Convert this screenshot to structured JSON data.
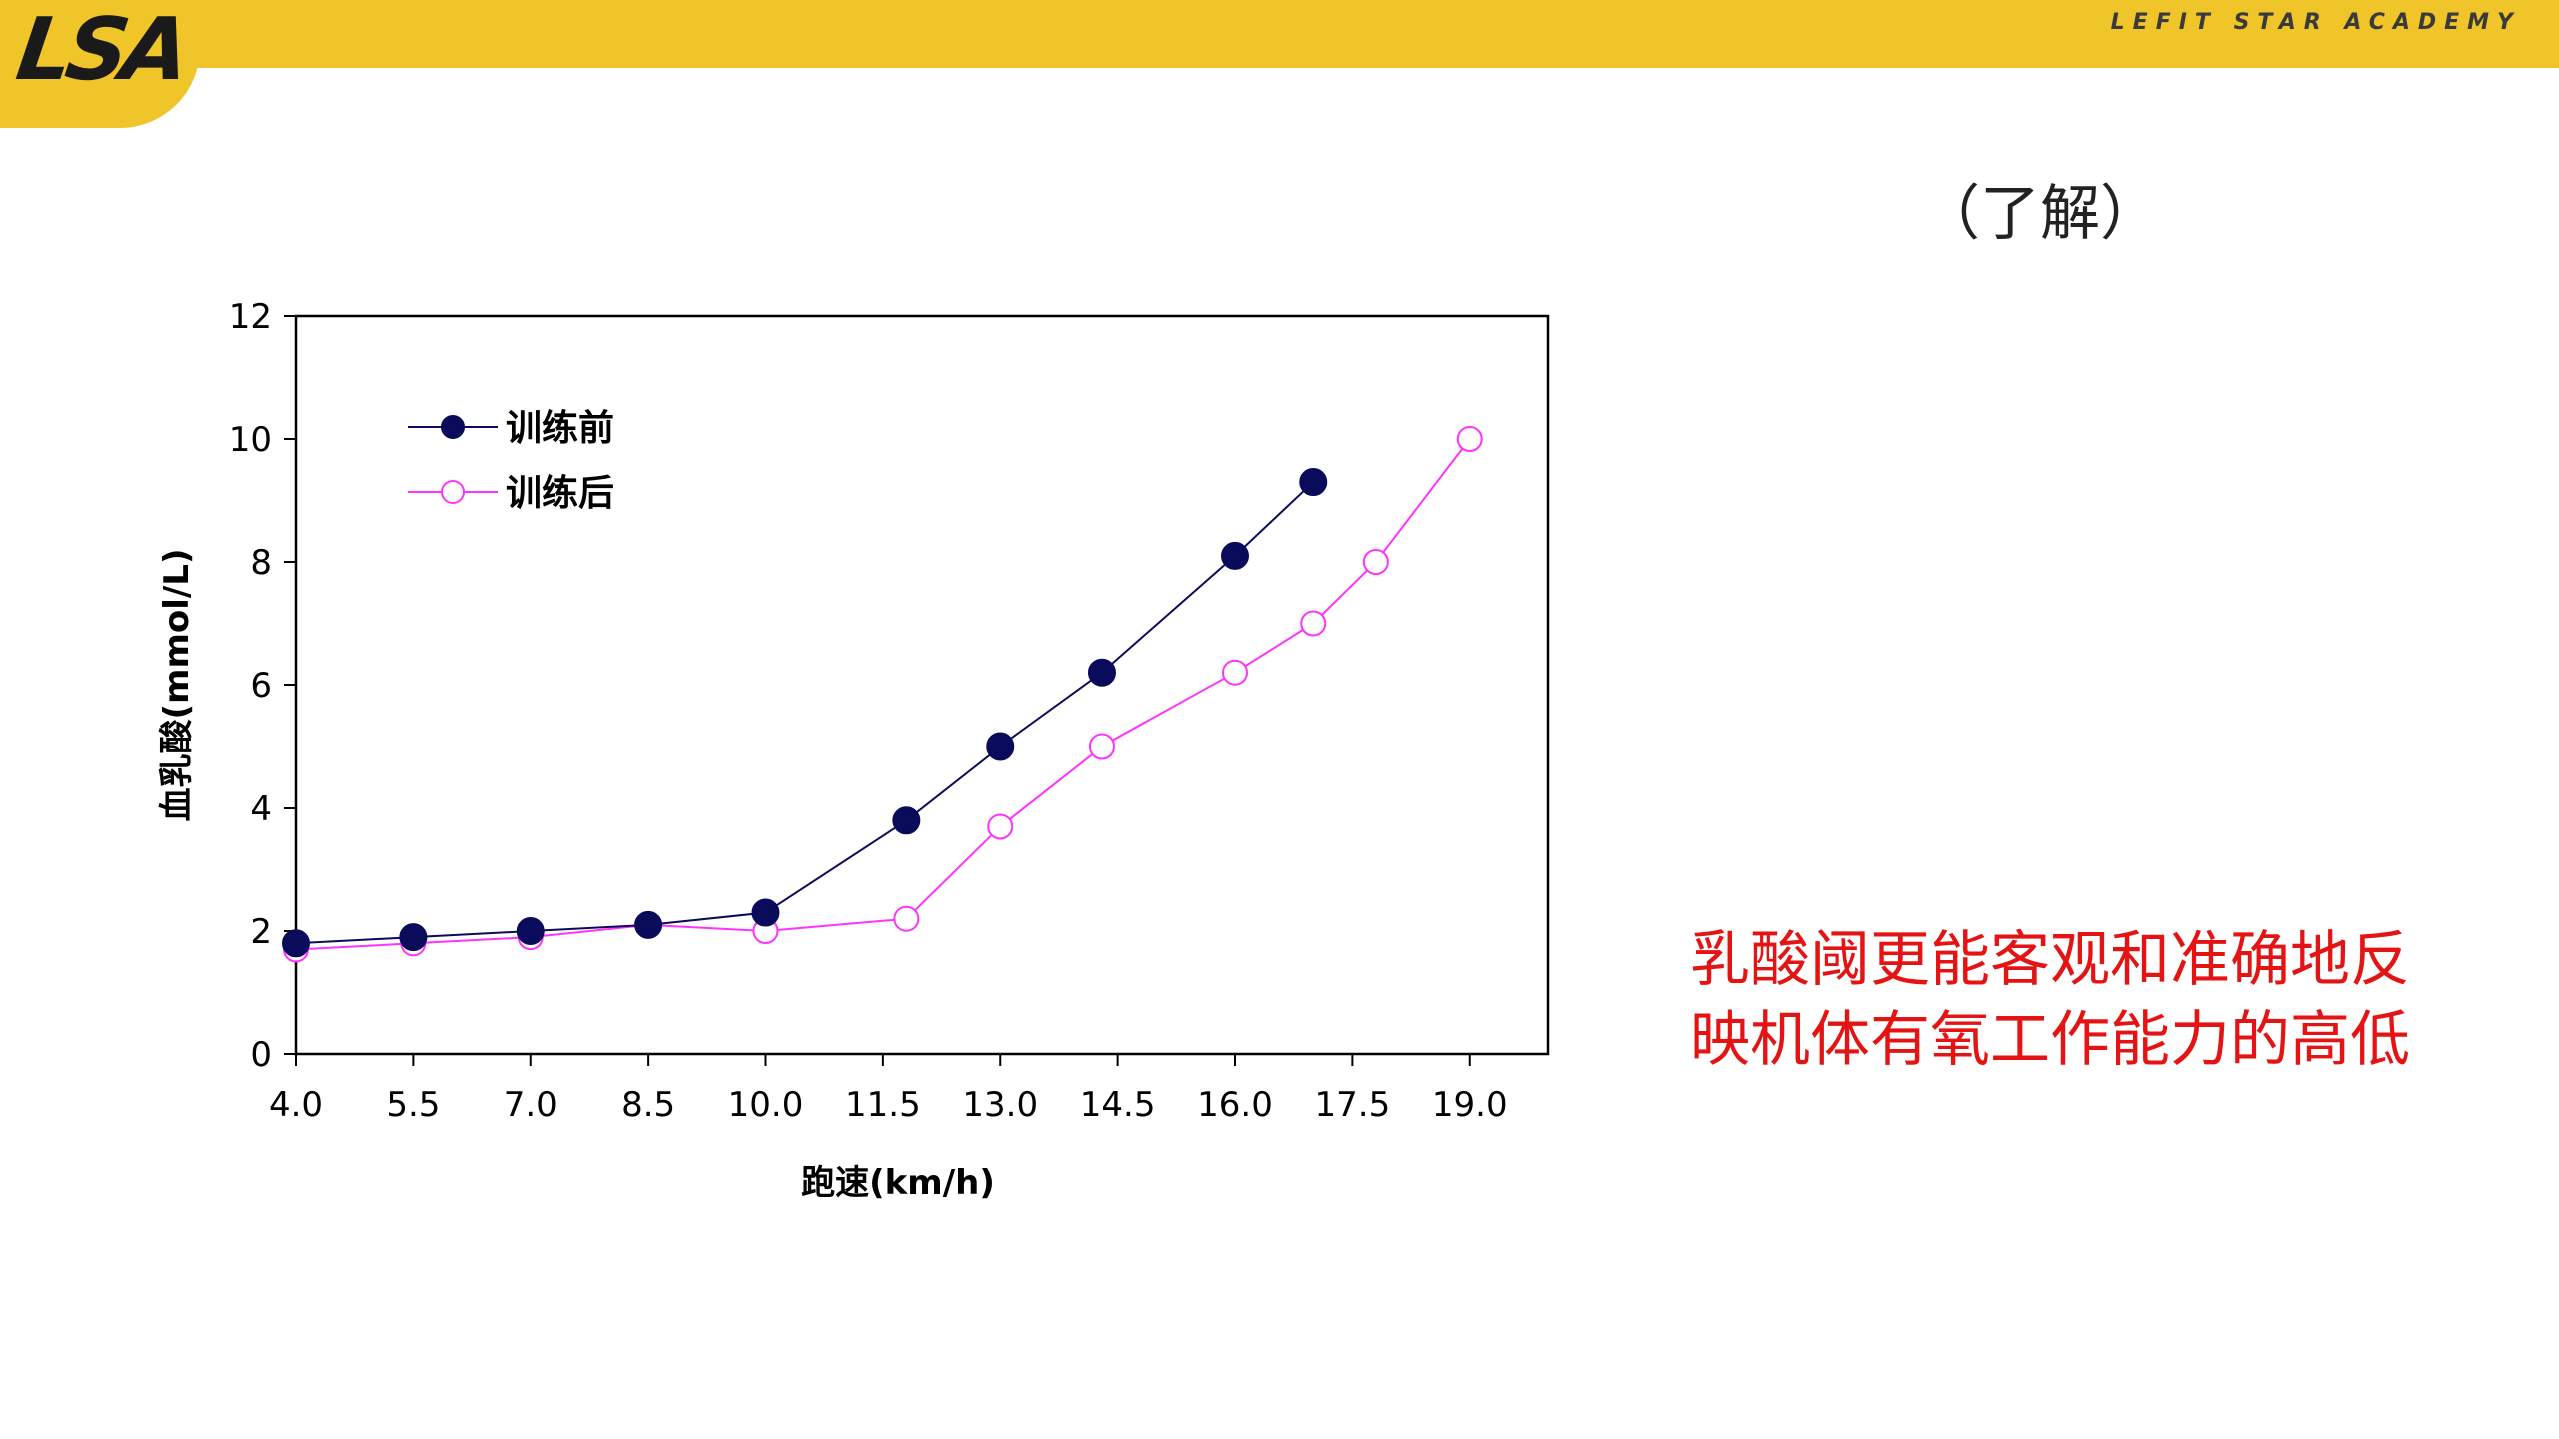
{
  "header": {
    "logo_text": "LSA",
    "brand_name": "LEFIT STAR ACADEMY"
  },
  "note_label": "（了解）",
  "conclusion": {
    "line1": "乳酸阈更能客观和准确地反",
    "line2": "映机体有氧工作能力的高低"
  },
  "colors": {
    "header_bg": "#f0c52a",
    "series_before": "#0b0b5c",
    "series_after": "#ff33ff",
    "conclusion_text": "#e41414"
  },
  "chart_data": {
    "type": "line",
    "title": "",
    "xlabel": "跑速(km/h)",
    "ylabel": "血乳酸(mmol/L)",
    "x_tick_labels": [
      "4.0",
      "5.5",
      "7.0",
      "8.5",
      "10.0",
      "11.5",
      "13.0",
      "14.5",
      "16.0",
      "17.5",
      "19.0"
    ],
    "y_tick_labels": [
      "0",
      "2",
      "4",
      "6",
      "8",
      "10",
      "12"
    ],
    "xlim": [
      4.0,
      20.0
    ],
    "ylim": [
      0,
      12
    ],
    "grid": false,
    "legend_position": "top-left",
    "series": [
      {
        "name": "训练前",
        "marker": "filled-circle",
        "color": "#0b0b5c",
        "x": [
          4.0,
          5.5,
          7.0,
          8.5,
          10.0,
          11.8,
          13.0,
          14.3,
          16.0,
          17.0
        ],
        "y": [
          1.8,
          1.9,
          2.0,
          2.1,
          2.3,
          3.8,
          5.0,
          6.2,
          8.1,
          9.3
        ]
      },
      {
        "name": "训练后",
        "marker": "open-circle",
        "color": "#ff33ff",
        "x": [
          4.0,
          5.5,
          7.0,
          8.5,
          10.0,
          11.8,
          13.0,
          14.3,
          16.0,
          17.0,
          17.8,
          19.0
        ],
        "y": [
          1.7,
          1.8,
          1.9,
          2.1,
          2.0,
          2.2,
          3.7,
          5.0,
          6.2,
          7.0,
          8.0,
          10.0
        ]
      }
    ]
  }
}
